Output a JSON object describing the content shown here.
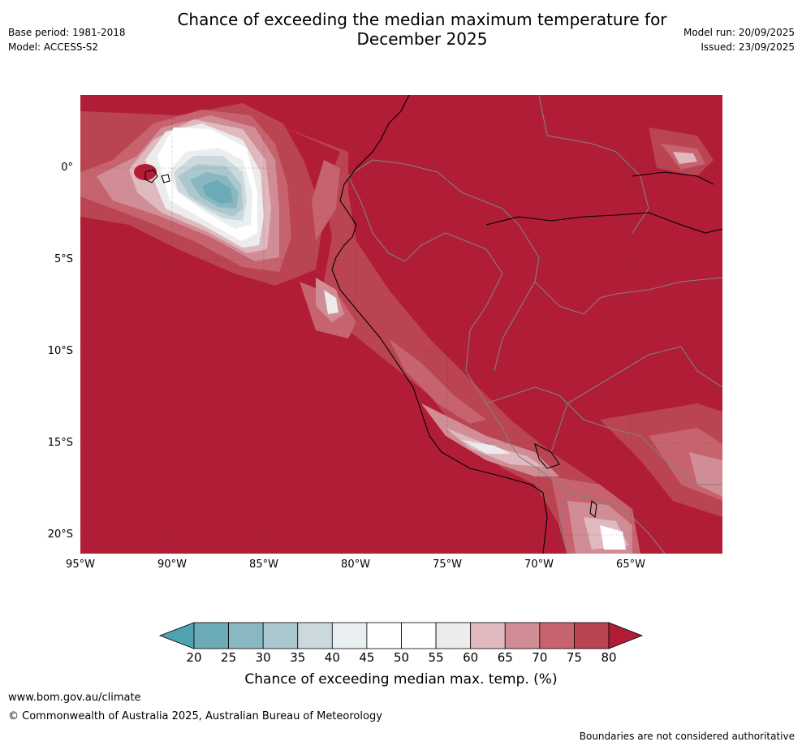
{
  "header": {
    "title_line1": "Chance of exceeding the median maximum temperature for",
    "title_line2": "December 2025",
    "base_period": "Base period: 1981-2018",
    "model": "Model: ACCESS-S2",
    "model_run": "Model run: 20/09/2025",
    "issued": "Issued: 23/09/2025"
  },
  "map": {
    "lat_labels": [
      "0°",
      "5°S",
      "10°S",
      "15°S",
      "20°S"
    ],
    "lon_labels": [
      "95°W",
      "90°W",
      "85°W",
      "80°W",
      "75°W",
      "70°W",
      "65°W"
    ]
  },
  "colorbar": {
    "ticks": [
      "20",
      "25",
      "30",
      "35",
      "40",
      "45",
      "50",
      "55",
      "60",
      "65",
      "70",
      "75",
      "80"
    ],
    "label": "Chance of exceeding median max. temp. (%)",
    "colors": [
      "#6aabb6",
      "#8ab8c2",
      "#abc8ce",
      "#cbd8dc",
      "#e9eef0",
      "#ffffff",
      "#ffffff",
      "#ececec",
      "#e0b9be",
      "#d18d95",
      "#c6636e",
      "#ba4451"
    ],
    "under_color": "#4ea3b0",
    "over_color": "#b11d37"
  },
  "footer": {
    "website": "www.bom.gov.au/climate",
    "copyright": "© Commonwealth of Australia 2025, Australian Bureau of Meteorology",
    "disclaimer": "Boundaries are not considered authoritative"
  }
}
